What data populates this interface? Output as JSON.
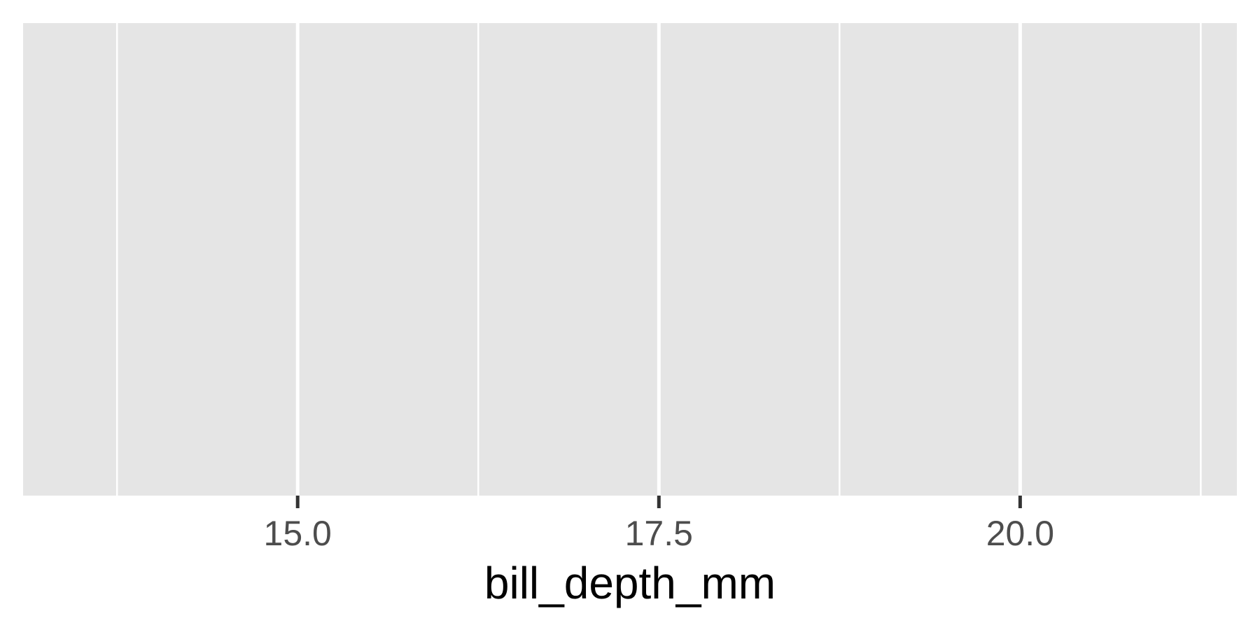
{
  "chart_data": {
    "type": "bar",
    "title": "",
    "xlabel": "bill_depth_mm",
    "ylabel": "",
    "xlim": [
      13.1,
      21.5
    ],
    "x_major_ticks": [
      15.0,
      17.5,
      20.0
    ],
    "x_tick_labels": [
      "15.0",
      "17.5",
      "20.0"
    ],
    "x_minor_ticks": [
      13.75,
      16.25,
      18.75,
      21.25
    ],
    "y_axis_visible": false,
    "grid": true,
    "legend": "none",
    "series": [],
    "colors": {
      "panel_background": "#e5e5e5",
      "grid_line": "#ffffff",
      "tick_mark": "#333333",
      "tick_label": "#4d4d4d",
      "axis_title": "#000000",
      "page_background": "#ffffff"
    }
  }
}
